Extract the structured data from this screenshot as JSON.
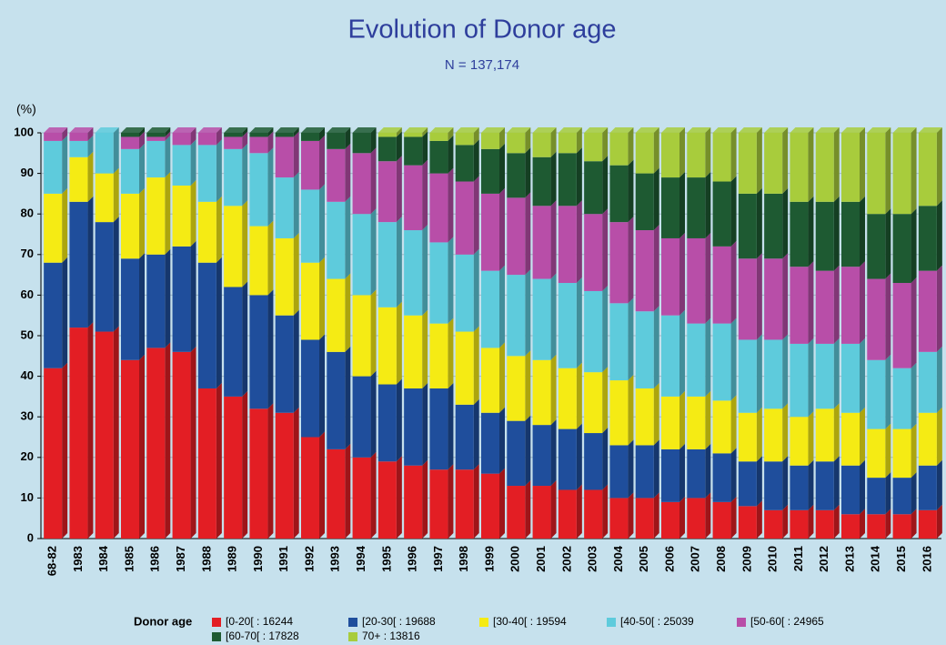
{
  "chart_data": {
    "type": "stacked_bar",
    "title": "Evolution of Donor age",
    "subtitle": "N = 137,174",
    "y_label": "(%)",
    "legend_title": "Donor age",
    "categories": [
      "68-82",
      "1983",
      "1984",
      "1985",
      "1986",
      "1987",
      "1988",
      "1989",
      "1990",
      "1991",
      "1992",
      "1993",
      "1994",
      "1995",
      "1996",
      "1997",
      "1998",
      "1999",
      "2000",
      "2001",
      "2002",
      "2003",
      "2004",
      "2005",
      "2006",
      "2007",
      "2008",
      "2009",
      "2010",
      "2011",
      "2012",
      "2013",
      "2014",
      "2015",
      "2016"
    ],
    "series": [
      {
        "name": "[0-20[ : 16244",
        "color": "#e31e24",
        "values": [
          42,
          52,
          51,
          44,
          47,
          46,
          37,
          35,
          32,
          31,
          25,
          22,
          20,
          19,
          18,
          17,
          17,
          16,
          13,
          13,
          12,
          12,
          10,
          10,
          9,
          10,
          9,
          8,
          7,
          7,
          7,
          6,
          6,
          6,
          7
        ]
      },
      {
        "name": "[20-30[ : 19688",
        "color": "#1f4e9c",
        "values": [
          26,
          31,
          27,
          25,
          23,
          26,
          31,
          27,
          28,
          24,
          24,
          24,
          20,
          19,
          19,
          20,
          16,
          15,
          16,
          15,
          15,
          14,
          13,
          13,
          13,
          12,
          12,
          11,
          12,
          11,
          12,
          12,
          9,
          9,
          11
        ]
      },
      {
        "name": "[30-40[ : 19594",
        "color": "#f5eb14",
        "values": [
          17,
          11,
          12,
          16,
          19,
          15,
          15,
          20,
          17,
          19,
          19,
          18,
          20,
          19,
          18,
          16,
          18,
          16,
          16,
          16,
          15,
          15,
          16,
          14,
          13,
          13,
          13,
          12,
          13,
          12,
          13,
          13,
          12,
          12,
          13
        ]
      },
      {
        "name": "[40-50[ : 25039",
        "color": "#5ecbdc",
        "values": [
          13,
          4,
          10,
          11,
          9,
          10,
          14,
          14,
          18,
          15,
          18,
          19,
          20,
          21,
          21,
          20,
          19,
          19,
          20,
          20,
          21,
          20,
          19,
          19,
          20,
          18,
          19,
          18,
          17,
          18,
          16,
          17,
          17,
          15,
          15
        ]
      },
      {
        "name": "[50-60[ : 24965",
        "color": "#b84ea8",
        "values": [
          2,
          2,
          0,
          3,
          1,
          3,
          3,
          3,
          4,
          10,
          12,
          13,
          15,
          15,
          16,
          17,
          18,
          19,
          19,
          18,
          19,
          19,
          20,
          20,
          19,
          21,
          19,
          20,
          20,
          19,
          18,
          19,
          20,
          21,
          20
        ]
      },
      {
        "name": "[60-70[ : 17828",
        "color": "#1e5a32",
        "values": [
          0,
          0,
          0,
          1,
          1,
          0,
          0,
          1,
          1,
          1,
          2,
          4,
          5,
          6,
          7,
          8,
          9,
          11,
          11,
          12,
          13,
          13,
          14,
          14,
          15,
          15,
          16,
          16,
          16,
          16,
          17,
          16,
          16,
          17,
          16
        ]
      },
      {
        "name": "70+ : 13816",
        "color": "#a8cc3c",
        "values": [
          0,
          0,
          0,
          0,
          0,
          0,
          0,
          0,
          0,
          0,
          0,
          0,
          0,
          1,
          1,
          2,
          3,
          4,
          5,
          6,
          5,
          7,
          8,
          10,
          11,
          11,
          12,
          15,
          15,
          17,
          17,
          17,
          20,
          20,
          18
        ]
      }
    ],
    "ylim": [
      0,
      100
    ],
    "yticks": [
      0,
      10,
      20,
      30,
      40,
      50,
      60,
      70,
      80,
      90,
      100
    ],
    "grid": true
  }
}
